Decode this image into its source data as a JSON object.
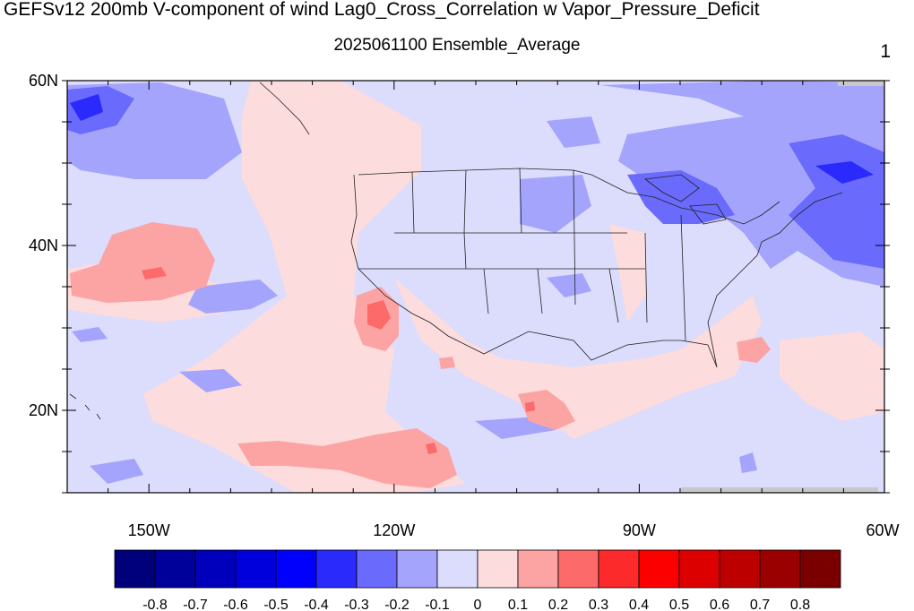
{
  "header": {
    "title": "GEFSv12 200mb V-component of wind Lag0_Cross_Correlation w Vapor_Pressure_Deficit",
    "subtitle": "2025061100 Ensemble_Average",
    "page_number": "1"
  },
  "map": {
    "lon_range": [
      -160,
      -60
    ],
    "lat_range": [
      10,
      60
    ],
    "lat_ticks": [
      {
        "value": 60,
        "label": "60N"
      },
      {
        "value": 40,
        "label": "40N"
      },
      {
        "value": 20,
        "label": "20N"
      }
    ],
    "lon_ticks": [
      {
        "value": -150,
        "label": "150W"
      },
      {
        "value": -120,
        "label": "120W"
      },
      {
        "value": -90,
        "label": "90W"
      },
      {
        "value": -60,
        "label": "60W"
      }
    ],
    "background_fill": "#dcdcfc"
  },
  "colorbar": {
    "levels": [
      "-0.8",
      "-0.7",
      "-0.6",
      "-0.5",
      "-0.4",
      "-0.3",
      "-0.2",
      "-0.1",
      "0",
      "0.1",
      "0.2",
      "0.3",
      "0.4",
      "0.5",
      "0.6",
      "0.7",
      "0.8"
    ],
    "colors": [
      "#00007a",
      "#00009a",
      "#0000bc",
      "#0000dc",
      "#0000fc",
      "#2a2afc",
      "#6a6afc",
      "#a4a4fc",
      "#dcdcfc",
      "#fcdcdc",
      "#fca4a4",
      "#fc6a6a",
      "#fc2a2a",
      "#fc0000",
      "#dc0000",
      "#bc0000",
      "#9a0000",
      "#7a0000"
    ]
  },
  "chart_data": {
    "type": "heatmap",
    "title": "GEFSv12 200mb V-component of wind Lag0_Cross_Correlation w Vapor_Pressure_Deficit",
    "subtitle": "2025061100 Ensemble_Average",
    "x_range": [
      -160,
      -60
    ],
    "y_range": [
      10,
      60
    ],
    "color_levels": [
      -0.8,
      -0.7,
      -0.6,
      -0.5,
      -0.4,
      -0.3,
      -0.2,
      -0.1,
      0,
      0.1,
      0.2,
      0.3,
      0.4,
      0.5,
      0.6,
      0.7,
      0.8
    ],
    "regions": [
      {
        "lon": -160,
        "lat": 60,
        "rx": 8,
        "ry": 3,
        "value": -0.3
      },
      {
        "lon": -146,
        "lat": 53,
        "rx": 12,
        "ry": 4,
        "value": -0.2
      },
      {
        "lon": -156,
        "lat": 38,
        "rx": 6,
        "ry": 4,
        "value": 0.1
      },
      {
        "lon": -148,
        "lat": 37,
        "rx": 7,
        "ry": 5,
        "value": 0.2
      },
      {
        "lon": -148,
        "lat": 36,
        "rx": 2,
        "ry": 1,
        "value": 0.3
      },
      {
        "lon": -140,
        "lat": 34,
        "rx": 4,
        "ry": 2,
        "value": -0.2
      },
      {
        "lon": -122,
        "lat": 30,
        "rx": 3,
        "ry": 4,
        "value": 0.2
      },
      {
        "lon": -122,
        "lat": 30,
        "rx": 1.5,
        "ry": 1.5,
        "value": 0.3
      },
      {
        "lon": -118,
        "lat": 13,
        "rx": 8,
        "ry": 3,
        "value": 0.2
      },
      {
        "lon": -102,
        "lat": 21,
        "rx": 4,
        "ry": 2,
        "value": 0.2
      },
      {
        "lon": -76,
        "lat": 25,
        "rx": 3,
        "ry": 2,
        "value": 0.2
      },
      {
        "lon": -96,
        "lat": 46,
        "rx": 5,
        "ry": 4,
        "value": -0.2
      },
      {
        "lon": -84,
        "lat": 45,
        "rx": 5,
        "ry": 4,
        "value": -0.2
      },
      {
        "lon": -65,
        "lat": 53,
        "rx": 12,
        "ry": 6,
        "value": -0.2
      },
      {
        "lon": -69,
        "lat": 50,
        "rx": 3,
        "ry": 1.5,
        "value": -0.3
      }
    ]
  }
}
